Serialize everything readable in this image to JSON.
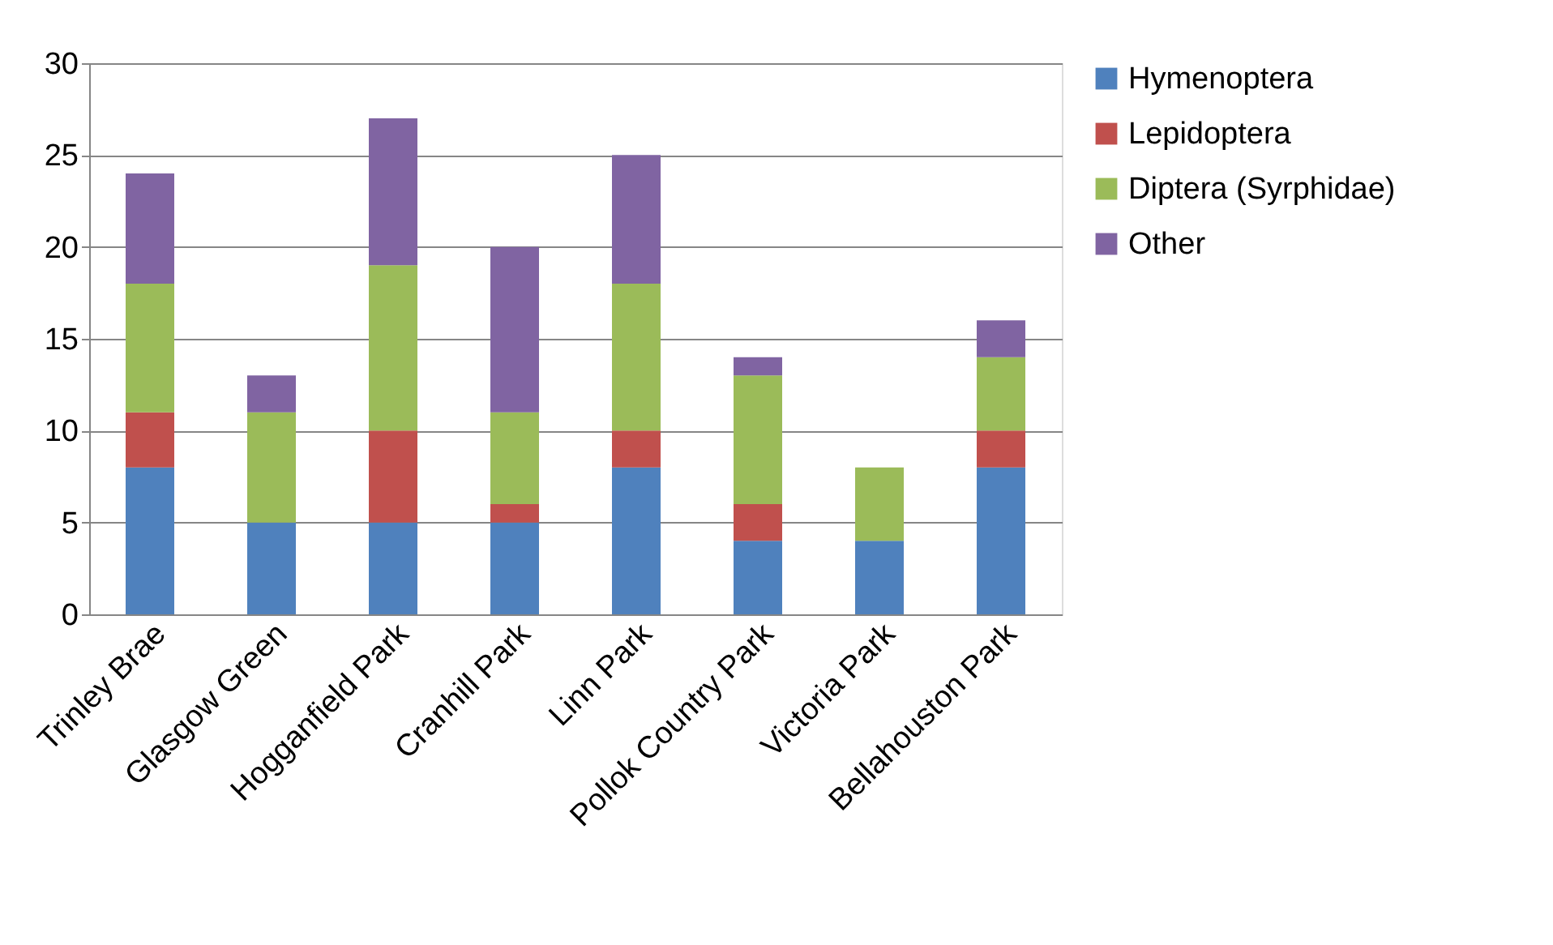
{
  "chart_data": {
    "type": "bar",
    "stacked": true,
    "categories": [
      "Trinley Brae",
      "Glasgow Green",
      "Hogganfield Park",
      "Cranhill Park",
      "Linn Park",
      "Pollok Country Park",
      "Victoria Park",
      "Bellahouston Park"
    ],
    "series": [
      {
        "name": "Hymenoptera",
        "color": "#4f81bd",
        "values": [
          8,
          5,
          5,
          5,
          8,
          4,
          4,
          8
        ]
      },
      {
        "name": "Lepidoptera",
        "color": "#c0504d",
        "values": [
          3,
          0,
          5,
          1,
          2,
          2,
          0,
          2
        ]
      },
      {
        "name": "Diptera (Syrphidae)",
        "color": "#9bbb59",
        "values": [
          7,
          6,
          9,
          5,
          8,
          7,
          4,
          4
        ]
      },
      {
        "name": "Other",
        "color": "#8064a2",
        "values": [
          6,
          2,
          8,
          9,
          7,
          1,
          0,
          2
        ]
      }
    ],
    "ylim": [
      0,
      30
    ],
    "yticks": [
      0,
      5,
      10,
      15,
      20,
      25,
      30
    ],
    "grid": "y",
    "legend": "right"
  }
}
